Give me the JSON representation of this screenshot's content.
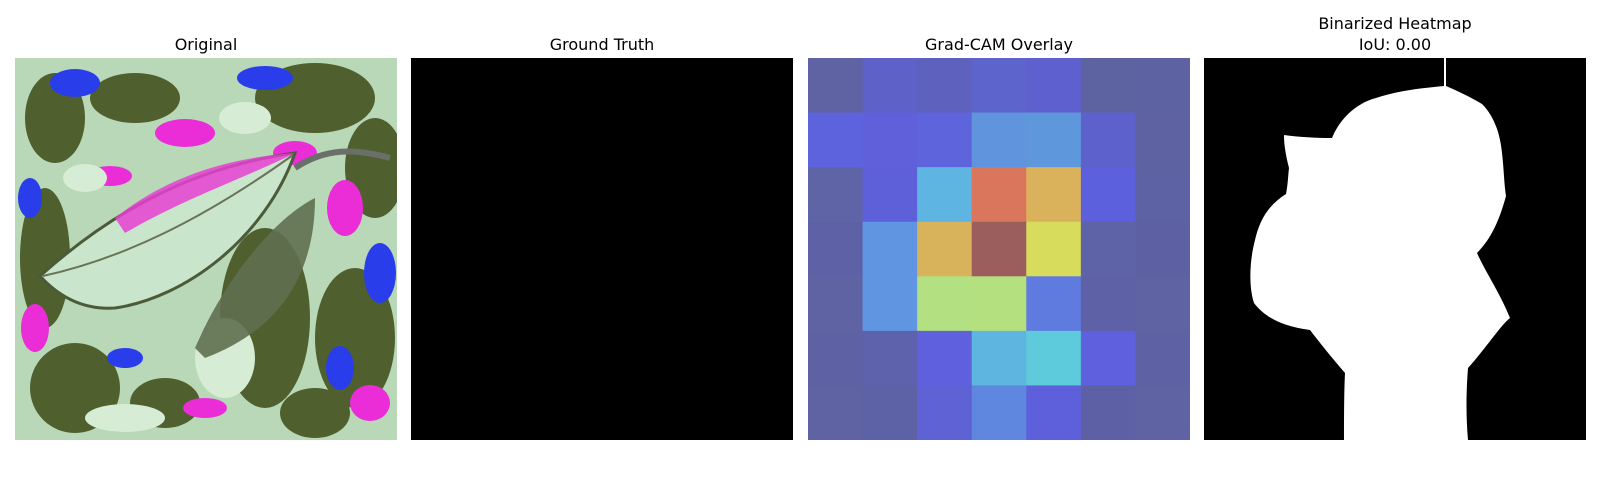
{
  "panels": {
    "original": {
      "title": "Original"
    },
    "ground_truth": {
      "title": "Ground Truth"
    },
    "gradcam": {
      "title": "Grad-CAM Overlay",
      "grid": [
        [
          "#5f63a3",
          "#5d61c8",
          "#5e61be",
          "#5d64cc",
          "#5e60cf",
          "#5d63a1",
          "#5d62a2"
        ],
        [
          "#5d63dc",
          "#5f60da",
          "#5e64dc",
          "#6095dd",
          "#5f97dc",
          "#5d61cc",
          "#5e62a2"
        ],
        [
          "#5f64a6",
          "#5e60da",
          "#5eb5e1",
          "#d9765c",
          "#dab25c",
          "#5d60dd",
          "#5d62a4"
        ],
        [
          "#5e61a5",
          "#6095e1",
          "#d9b35c",
          "#9c5e5d",
          "#d7dc5c",
          "#5e62a6",
          "#5d61a3"
        ],
        [
          "#5f62a3",
          "#5f95e1",
          "#b3e080",
          "#b4e080",
          "#5f7bdf",
          "#5e61a5",
          "#5f62a3"
        ],
        [
          "#5e61a4",
          "#5e62ad",
          "#5e60dd",
          "#5eb5df",
          "#5dcbdc",
          "#5e60dd",
          "#5e61a3"
        ],
        [
          "#5f62a3",
          "#5d61a6",
          "#5e62d5",
          "#5f87df",
          "#5e60db",
          "#5e60a5",
          "#5f62a3"
        ]
      ]
    },
    "binarized": {
      "title_line1": "Binarized Heatmap",
      "title_line2": "IoU: 0.00"
    }
  },
  "colors": {
    "background": "#ffffff",
    "ground_truth_fill": "#000000",
    "mask_background": "#000000",
    "mask_foreground": "#ffffff"
  }
}
